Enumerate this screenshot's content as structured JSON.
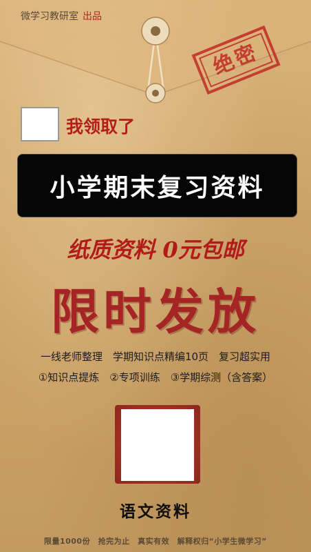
{
  "brand": {
    "name": "微学习教研室",
    "suffix": "出品"
  },
  "stamp": {
    "label": "绝密"
  },
  "claim": {
    "label": "我领取了"
  },
  "title": "小学期末复习资料",
  "paper_offer": "纸质资料 0元包邮",
  "limited": "限时发放",
  "description": {
    "line1": "一线老师整理　学期知识点精编10页　复习超实用",
    "line2": "①知识点提炼　②专项训练　③学期综测（含答案）"
  },
  "subject": "语文资料",
  "footer": "限量1000份　抢完为止　真实有效　解释权归“小学生微学习”",
  "colors": {
    "paper": "#d4ab70",
    "accent_red": "#b31e1a",
    "title_bg": "#060606"
  }
}
